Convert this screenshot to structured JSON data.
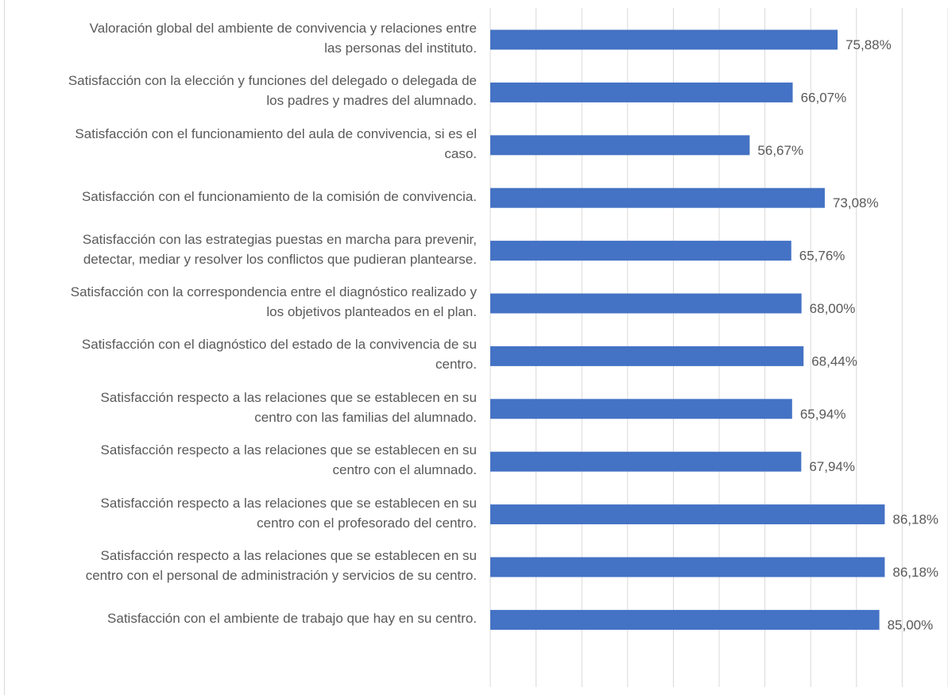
{
  "chart_data": {
    "type": "bar",
    "orientation": "horizontal",
    "categories": [
      [
        "Valoración global del ambiente de convivencia y relaciones entre",
        "las personas del instituto."
      ],
      [
        "Satisfacción con la elección y funciones del delegado o delegada de",
        "los padres y madres del alumnado."
      ],
      [
        "Satisfacción con el funcionamiento del aula de convivencia, si es el",
        "caso."
      ],
      [
        "Satisfacción con el funcionamiento de la comisión de convivencia."
      ],
      [
        "Satisfacción con las estrategias puestas en marcha para prevenir,",
        "detectar, mediar y resolver los conflictos que pudieran plantearse."
      ],
      [
        "Satisfacción con la correspondencia entre el diagnóstico realizado y",
        "los objetivos planteados en el plan."
      ],
      [
        "Satisfacción con el diagnóstico del estado de la convivencia de su",
        "centro."
      ],
      [
        "Satisfacción respecto a las relaciones que se establecen en su",
        "centro con las familias del alumnado."
      ],
      [
        "Satisfacción respecto a las relaciones que se establecen en su",
        "centro con el alumnado."
      ],
      [
        "Satisfacción respecto a las relaciones que se establecen en su",
        "centro con el profesorado del centro."
      ],
      [
        "Satisfacción respecto a las relaciones que se establecen en su",
        "centro con el personal de administración y servicios de su centro."
      ],
      [
        "Satisfacción con el ambiente de trabajo que hay en su centro."
      ]
    ],
    "values": [
      75.88,
      66.07,
      56.67,
      73.08,
      65.76,
      68.0,
      68.44,
      65.94,
      67.94,
      86.18,
      86.18,
      85.0
    ],
    "data_labels": [
      "75,88%",
      "66,07%",
      "56,67%",
      "73,08%",
      "65,76%",
      "68,00%",
      "68,44%",
      "65,94%",
      "67,94%",
      "86,18%",
      "86,18%",
      "85,00%"
    ],
    "xlim": [
      0,
      100
    ],
    "grid": true,
    "legend": "none",
    "bar_color": "#4472c4",
    "grid_color": "#d9d9d9",
    "label_color": "#595959"
  }
}
